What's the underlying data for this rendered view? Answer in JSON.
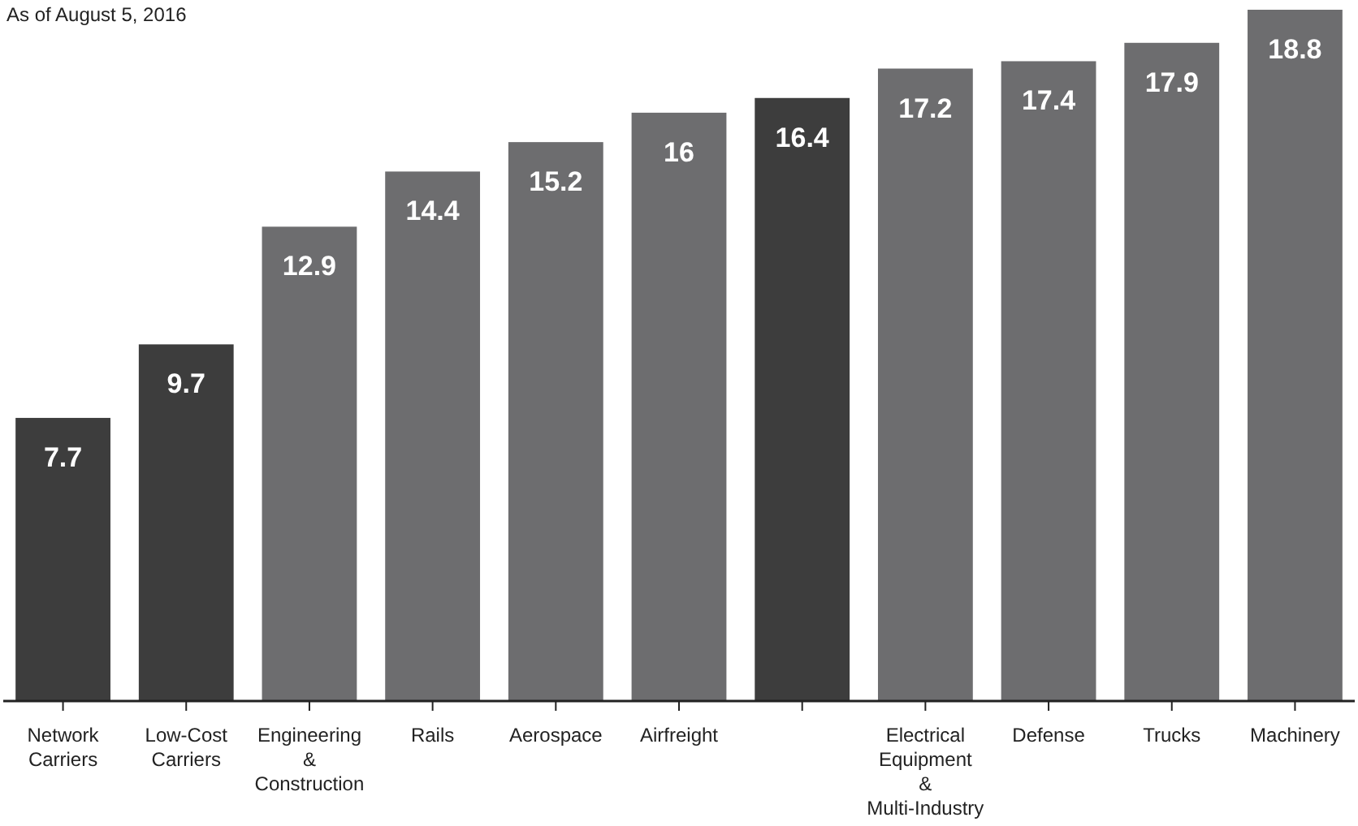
{
  "chart_data": {
    "type": "bar",
    "subtitle": "As of August 5, 2016",
    "categories": [
      "Network\nCarriers",
      "Low-Cost\nCarriers",
      "Engineering\n&\nConstruction",
      "Rails",
      "Aerospace",
      "Airfreight",
      null,
      "Electrical\nEquipment\n&\nMulti-Industry",
      "Defense",
      "Trucks",
      "Machinery"
    ],
    "values": [
      7.7,
      9.7,
      12.9,
      14.4,
      15.2,
      16,
      16.4,
      17.2,
      17.4,
      17.9,
      18.8
    ],
    "colors": [
      "#3d3d3d",
      "#3d3d3d",
      "#6d6d6f",
      "#6d6d6f",
      "#6d6d6f",
      "#6d6d6f",
      "#3d3d3d",
      "#6d6d6f",
      "#6d6d6f",
      "#6d6d6f",
      "#6d6d6f"
    ],
    "data_labels": true
  }
}
